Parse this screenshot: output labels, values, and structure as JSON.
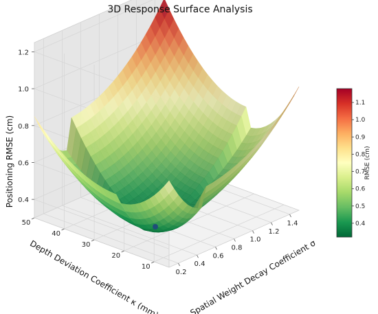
{
  "chart_data": {
    "type": "surface3d",
    "title": "3D Response Surface Analysis",
    "xlabel": "Spatial Weight Decay Coefficient σ",
    "ylabel": "Depth Deviation Coefficient κ (mm)",
    "zlabel": "Positioning RMSE (cm)",
    "xlim": [
      0.1,
      1.5
    ],
    "ylim": [
      5,
      50
    ],
    "zlim": [
      0.3,
      1.25
    ],
    "x_ticks": [
      "0.2",
      "0.4",
      "0.6",
      "0.8",
      "1.0",
      "1.2",
      "1.4"
    ],
    "y_ticks": [
      "10",
      "20",
      "30",
      "40",
      "50"
    ],
    "z_ticks": [
      "0.4",
      "0.6",
      "0.8",
      "1.0",
      "1.2"
    ],
    "minimum_point": {
      "x": 0.5,
      "y": 22,
      "z": 0.33,
      "color": "#1f4e79"
    },
    "surface_corners": {
      "x0.1_y5": 0.77,
      "x1.5_y5": 0.97,
      "x0.1_y50": 0.85,
      "x1.5_y50": 1.18
    },
    "colorbar": {
      "label": "RMSE (cm)",
      "range": [
        0.32,
        1.18
      ],
      "ticks": [
        "0.4",
        "0.5",
        "0.6",
        "0.7",
        "0.8",
        "0.9",
        "1.0",
        "1.1"
      ],
      "colormap": "RdYlGn_r"
    },
    "grid": true
  }
}
